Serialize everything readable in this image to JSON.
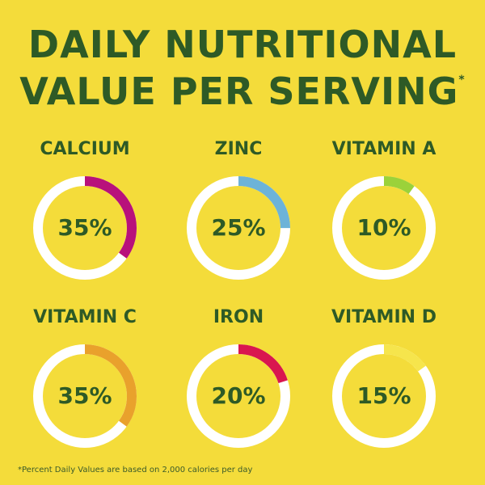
{
  "title": {
    "line1": "DAILY NUTRITIONAL",
    "line2": "VALUE PER SERVING",
    "asterisk": "*"
  },
  "chart_data": {
    "type": "pie",
    "title": "DAILY NUTRITIONAL VALUE PER SERVING*",
    "items": [
      {
        "label": "CALCIUM",
        "value": 35,
        "display": "35%",
        "color": "#b8117b"
      },
      {
        "label": "ZINC",
        "value": 25,
        "display": "25%",
        "color": "#6db3d8"
      },
      {
        "label": "VITAMIN A",
        "value": 10,
        "display": "10%",
        "color": "#9bd23a"
      },
      {
        "label": "VITAMIN C",
        "value": 35,
        "display": "35%",
        "color": "#e9a12c"
      },
      {
        "label": "IRON",
        "value": 20,
        "display": "20%",
        "color": "#d9164f"
      },
      {
        "label": "VITAMIN D",
        "value": 15,
        "display": "15%",
        "color": "#f6e54c"
      }
    ]
  },
  "footnote": "*Percent Daily Values are based on 2,000 calories per day"
}
